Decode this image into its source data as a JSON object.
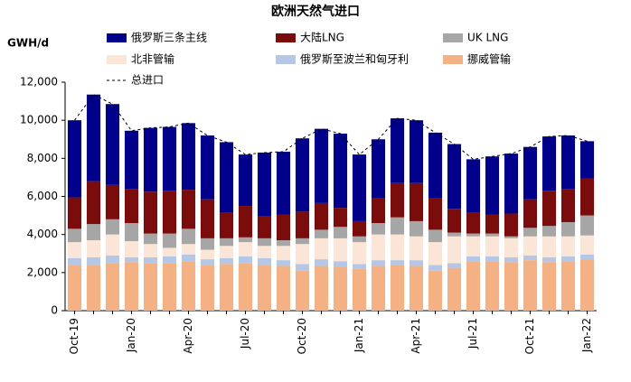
{
  "chart_data": {
    "type": "stacked_bar",
    "title": "欧洲天然气进口",
    "y_label": "GWH/d",
    "categories": [
      "Oct-19",
      null,
      null,
      "Jan-20",
      null,
      null,
      "Apr-20",
      null,
      null,
      "Jul-20",
      null,
      null,
      "Oct-20",
      null,
      null,
      "Jan-21",
      null,
      null,
      "Apr-21",
      null,
      null,
      "Jul-21",
      null,
      null,
      "Oct-21",
      null,
      null,
      "Jan-22"
    ],
    "series": [
      {
        "name": "挪威管输",
        "color": "#f4b183",
        "values": [
          2400,
          2400,
          2500,
          2550,
          2500,
          2500,
          2600,
          2400,
          2450,
          2500,
          2400,
          2350,
          2100,
          2350,
          2300,
          2200,
          2350,
          2400,
          2350,
          2100,
          2250,
          2600,
          2600,
          2550,
          2650,
          2550,
          2600,
          2700
        ]
      },
      {
        "name": "俄罗斯至波兰和匈牙利",
        "color": "#b4c7e7",
        "values": [
          350,
          400,
          400,
          250,
          300,
          350,
          350,
          300,
          300,
          350,
          350,
          300,
          350,
          350,
          300,
          250,
          300,
          250,
          300,
          300,
          250,
          250,
          250,
          250,
          250,
          250,
          250,
          250
        ]
      },
      {
        "name": "北非管输",
        "color": "#fbe5d6",
        "values": [
          850,
          900,
          1100,
          850,
          700,
          450,
          550,
          500,
          650,
          750,
          650,
          750,
          1050,
          1100,
          1200,
          1150,
          1350,
          1350,
          1250,
          1200,
          1400,
          1050,
          1050,
          1000,
          1000,
          1100,
          1050,
          1000
        ]
      },
      {
        "name": "UK LNG",
        "color": "#a6a6a6",
        "values": [
          700,
          850,
          800,
          950,
          550,
          750,
          800,
          600,
          400,
          250,
          400,
          300,
          300,
          450,
          600,
          300,
          600,
          900,
          800,
          650,
          200,
          150,
          150,
          100,
          450,
          550,
          750,
          1050
        ]
      },
      {
        "name": "大陆LNG",
        "color": "#7b0c0c",
        "values": [
          1650,
          2250,
          1800,
          1800,
          2200,
          2250,
          2050,
          2050,
          1350,
          1650,
          1150,
          1350,
          1400,
          1400,
          1000,
          800,
          1300,
          1800,
          2000,
          1650,
          1250,
          1100,
          1000,
          1200,
          1500,
          1850,
          1750,
          1950
        ]
      },
      {
        "name": "俄罗斯三条主线",
        "color": "#00008b",
        "values": [
          4050,
          4550,
          4250,
          3050,
          3350,
          3350,
          3500,
          3350,
          3700,
          2700,
          3350,
          3300,
          3850,
          3900,
          3900,
          3500,
          3100,
          3400,
          3300,
          3450,
          3400,
          2800,
          3050,
          3150,
          2750,
          2850,
          2800,
          1950
        ]
      }
    ],
    "line_series": {
      "name": "总进口",
      "color": "#000000",
      "style": "dashed",
      "values": [
        10000,
        11350,
        10850,
        9450,
        9600,
        9650,
        9850,
        9200,
        8850,
        8200,
        8300,
        8350,
        9050,
        9550,
        9300,
        8200,
        9000,
        10100,
        10000,
        9350,
        8750,
        7950,
        8100,
        8250,
        8600,
        9150,
        9200,
        8900
      ]
    },
    "ylim": [
      0,
      12000
    ],
    "yticks": [
      {
        "value": 0,
        "label": "0"
      },
      {
        "value": 2000,
        "label": "2,000"
      },
      {
        "value": 4000,
        "label": "4,000"
      },
      {
        "value": 6000,
        "label": "6,000"
      },
      {
        "value": 8000,
        "label": "8,000"
      },
      {
        "value": 10000,
        "label": "10,000"
      },
      {
        "value": 12000,
        "label": "12,000"
      }
    ],
    "grid": false
  }
}
